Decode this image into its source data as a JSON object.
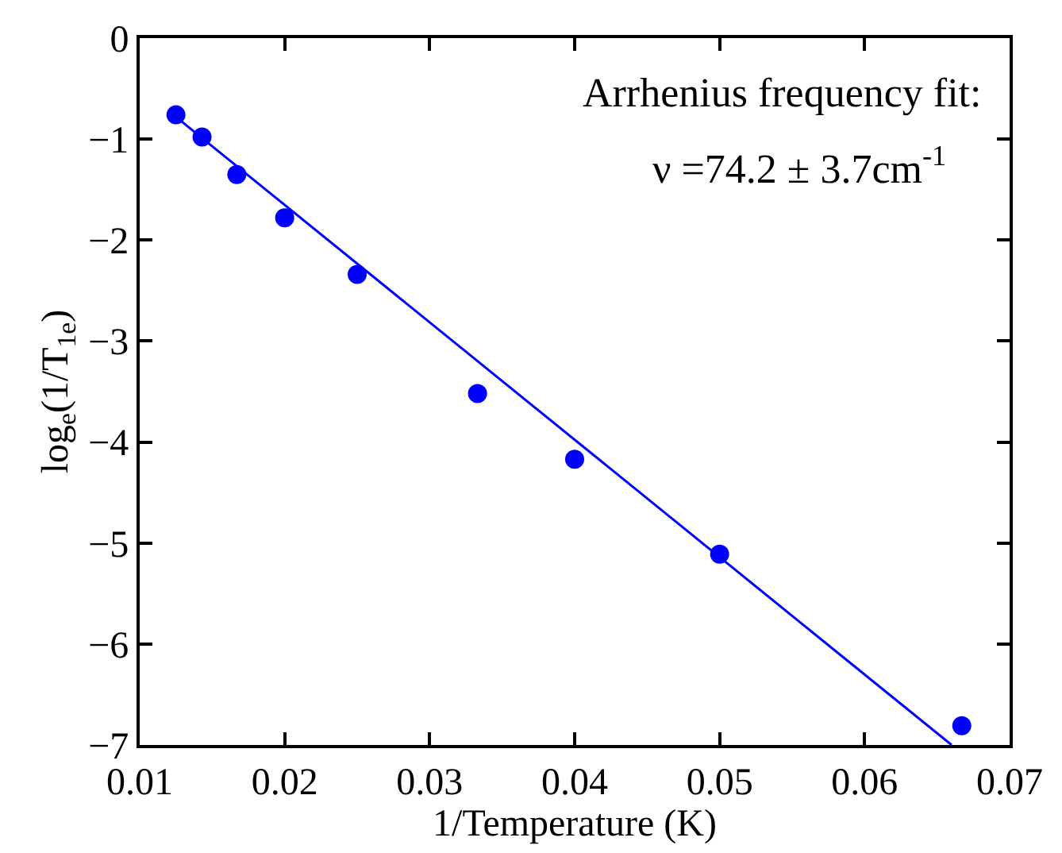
{
  "chart_data": {
    "type": "scatter",
    "xlabel": "1/Temperature (K)",
    "ylabel": "log$_{e}$(1/T$_{1e}$)",
    "x": [
      0.0125,
      0.0143,
      0.0167,
      0.02,
      0.025,
      0.0333,
      0.04,
      0.05,
      0.0667
    ],
    "series": [
      {
        "color": "#0000ff",
        "values": [
          -0.76,
          -0.98,
          -1.35,
          -1.78,
          -2.34,
          -3.52,
          -4.17,
          -5.11,
          -6.81
        ]
      },
      {
        "type": "line",
        "color": "#0000ff",
        "x": [
          0.0125,
          0.066
        ],
        "values": [
          -0.78,
          -7.0
        ],
        "line_style": "solid",
        "marker": "none"
      }
    ],
    "xlim": [
      0.01,
      0.07
    ],
    "xticks": [
      {
        "value": 0.01,
        "label": "0.01"
      },
      {
        "value": 0.02,
        "label": "0.02"
      },
      {
        "value": 0.03,
        "label": "0.03"
      },
      {
        "value": 0.04,
        "label": "0.04"
      },
      {
        "value": 0.05,
        "label": "0.05"
      },
      {
        "value": 0.06,
        "label": "0.06"
      },
      {
        "value": 0.07,
        "label": "0.07"
      }
    ],
    "ylim": [
      -7,
      0
    ],
    "yticks": [
      {
        "value": -7,
        "label": "−7"
      },
      {
        "value": -6,
        "label": "−6"
      },
      {
        "value": -5,
        "label": "−5"
      },
      {
        "value": -4,
        "label": "−4"
      },
      {
        "value": -3,
        "label": "−3"
      },
      {
        "value": -2,
        "label": "−2"
      },
      {
        "value": -1,
        "label": "−1"
      },
      0
    ],
    "annotations": [
      "Arrhenius frequency fit:",
      "ν =74.2 ± 3.7cm$^{-1}$"
    ],
    "marker": "circle"
  }
}
